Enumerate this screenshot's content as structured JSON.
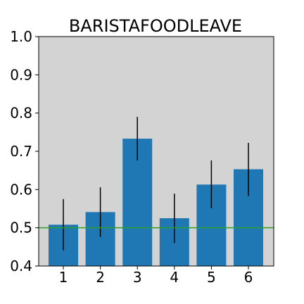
{
  "chart_data": {
    "type": "bar",
    "title": "BARISTAFOODLEAVE",
    "xlabel": "",
    "ylabel": "",
    "categories": [
      "1",
      "2",
      "3",
      "4",
      "5",
      "6"
    ],
    "values": [
      0.508,
      0.541,
      0.733,
      0.525,
      0.613,
      0.653
    ],
    "error_low": [
      0.441,
      0.476,
      0.676,
      0.46,
      0.551,
      0.583
    ],
    "error_high": [
      0.575,
      0.606,
      0.79,
      0.589,
      0.676,
      0.722
    ],
    "reference_line": 0.5,
    "ylim": [
      0.4,
      1.0
    ],
    "yticks": [
      "0.4",
      "0.5",
      "0.6",
      "0.7",
      "0.8",
      "0.9",
      "1.0"
    ],
    "grid": false,
    "legend": "none",
    "colors": {
      "bar": "#1f77b4",
      "error_bar": "#000000",
      "reference_line": "#2ca02c",
      "plot_background": "#d3d3d3"
    }
  }
}
